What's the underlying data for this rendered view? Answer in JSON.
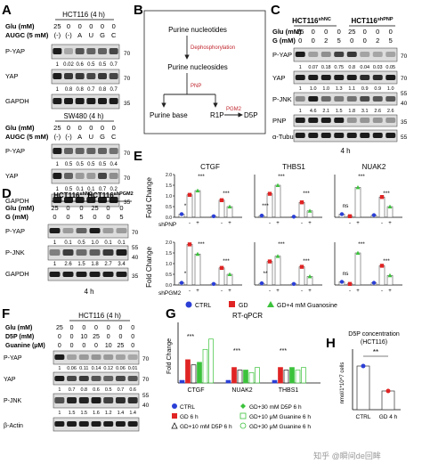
{
  "panels": {
    "A": "A",
    "B": "B",
    "C": "C",
    "D": "D",
    "E": "E",
    "F": "F",
    "G": "G",
    "H": "H"
  },
  "panel_A": {
    "top": {
      "title": "HCT116 (4 h)",
      "row1_label": "Glu (mM)",
      "row1_values": [
        "25",
        "0",
        "0",
        "0",
        "0",
        "0"
      ],
      "row2_label": "AUGC (5 mM)",
      "row2_values": [
        "(-)",
        "(-)",
        "A",
        "U",
        "G",
        "C"
      ],
      "blot1": "P-YAP",
      "quant1": [
        "1",
        "0.02",
        "0.6",
        "0.5",
        "0.5",
        "0.7"
      ],
      "blot2": "YAP",
      "quant2": [
        "1",
        "0.8",
        "0.8",
        "0.7",
        "0.8",
        "0.7"
      ],
      "blot3": "GAPDH",
      "mw": [
        "70",
        "70",
        "35"
      ]
    },
    "bottom": {
      "title": "SW480 (4 h)",
      "row1_label": "Glu (mM)",
      "row1_values": [
        "25",
        "0",
        "0",
        "0",
        "0",
        "0"
      ],
      "row2_label": "AUGC (5 mM)",
      "row2_values": [
        "(-)",
        "(-)",
        "A",
        "U",
        "G",
        "C"
      ],
      "blot1": "P-YAP",
      "quant1": [
        "1",
        "0.5",
        "0.5",
        "0.5",
        "0.5",
        "0.4"
      ],
      "blot2": "YAP",
      "quant2": [
        "1",
        "0.5",
        "0.1",
        "0.1",
        "0.7",
        "0.2"
      ],
      "blot3": "GAPDH",
      "mw": [
        "70",
        "70",
        "35"
      ]
    }
  },
  "panel_B": {
    "n1": "Purine nucleotides",
    "n2": "Purine nucleosides",
    "n3": "Purine base",
    "n4": "R1P",
    "n5": "D5P",
    "e1": "Dephosphorylation",
    "e2": "PNP",
    "e3": "PGM2"
  },
  "panel_C": {
    "group1": "HCT116",
    "group1_sup": "shNC",
    "group2": "HCT116",
    "group2_sup": "shPNP",
    "row1_label": "Glu (mM)",
    "row1_values": [
      "25",
      "0",
      "0",
      "0",
      "25",
      "0",
      "0",
      "0"
    ],
    "row2_label": "G (mM)",
    "row2_values": [
      "0",
      "0",
      "2",
      "5",
      "0",
      "0",
      "2",
      "5"
    ],
    "blot1": "P-YAP",
    "quant1": [
      "1",
      "0.07",
      "0.18",
      "0.75",
      "0.8",
      "0.04",
      "0.03",
      "0.05"
    ],
    "blot2": "YAP",
    "quant2": [
      "1",
      "1.0",
      "1.0",
      "1.3",
      "1.1",
      "0.9",
      "0.9",
      "1.0"
    ],
    "blot3": "P-JNK",
    "quant3": [
      "1",
      "4.6",
      "2.1",
      "1.5",
      "1.8",
      "3.1",
      "2.6",
      "2.6"
    ],
    "blot4": "PNP",
    "blot5": "α-Tubulin",
    "mw": [
      "70",
      "70",
      "55",
      "40",
      "35",
      "55"
    ],
    "time": "4 h"
  },
  "panel_D": {
    "group1": "HCT116",
    "group1_sup": "shNC",
    "group2": "HCT116",
    "group2_sup": "shPGM2",
    "row1_label": "Glu (mM)",
    "row1_values": [
      "25",
      "0",
      "0",
      "25",
      "0",
      "0"
    ],
    "row2_label": "G (mM)",
    "row2_values": [
      "0",
      "0",
      "5",
      "0",
      "0",
      "5"
    ],
    "blot1": "P-YAP",
    "quant1": [
      "1",
      "0.1",
      "0.5",
      "1.0",
      "0.1",
      "0.1"
    ],
    "blot2": "P-JNK",
    "quant2": [
      "1",
      "2.6",
      "1.5",
      "1.8",
      "2.7",
      "3.4"
    ],
    "blot3": "GAPDH",
    "mw": [
      "70",
      "55",
      "40",
      "35"
    ],
    "time": "4 h"
  },
  "panel_E": {
    "ylabel": "Fold Change",
    "gene1": "CTGF",
    "gene2": "THBS1",
    "gene3": "NUAK2",
    "row1_factor": "shPNP",
    "row2_factor": "shPGM2",
    "signs": [
      "-",
      "+",
      "-",
      "+"
    ],
    "yticks": [
      "0.0",
      "0.5",
      "1.0",
      "1.5",
      "2.0"
    ],
    "legend": [
      "CTRL",
      "GD",
      "GD+4 mM Guanosine"
    ],
    "sig": {
      "r1": [
        [
          "*",
          "***",
          "***"
        ],
        [
          "***",
          "***",
          "***"
        ],
        [
          "ns",
          "***",
          "***"
        ]
      ],
      "r2": [
        [
          "*",
          "***",
          "***"
        ],
        [
          "**",
          "***",
          "***"
        ],
        [
          "ns",
          "***",
          "***"
        ]
      ]
    }
  },
  "panel_F": {
    "title": "HCT116 (4 h)",
    "row1_label": "Glu (mM)",
    "row1_values": [
      "25",
      "0",
      "0",
      "0",
      "0",
      "0",
      "0"
    ],
    "row2_label": "D5P (mM)",
    "row2_values": [
      "0",
      "0",
      "10",
      "25",
      "0",
      "0",
      "0"
    ],
    "row3_label": "Guanine (μM)",
    "row3_values": [
      "0",
      "0",
      "0",
      "0",
      "10",
      "25",
      "0"
    ],
    "blot1": "P-YAP",
    "quant1": [
      "1",
      "0.06",
      "0.11",
      "0.14",
      "0.12",
      "0.06",
      "0.01"
    ],
    "blot2": "YAP",
    "quant2": [
      "1",
      "0.7",
      "0.8",
      "0.6",
      "0.5",
      "0.7",
      "0.6"
    ],
    "blot3": "P-JNK",
    "quant3": [
      "1",
      "1.5",
      "1.5",
      "1.6",
      "1.2",
      "1.4",
      "1.4"
    ],
    "blot4": "β-Actin",
    "mw": [
      "70",
      "70",
      "55",
      "40"
    ]
  },
  "panel_G": {
    "title": "RT-qPCR",
    "ylabel": "Fold Change",
    "genes": [
      "CTGF",
      "NUAK2",
      "THBS1"
    ],
    "legend": [
      "CTRL",
      "GD 6 h",
      "GD+10 mM D5P 6 h",
      "GD+30 mM D5P 6 h",
      "GD+10 μM Guanine 6 h",
      "GD+30 μM Guanine 6 h"
    ],
    "sig": [
      "***",
      "***",
      "***"
    ]
  },
  "panel_H": {
    "title1": "D5P concentration",
    "title2": "(HCT116)",
    "ylabel": "nmol/1*10^7 cells",
    "xlabels": [
      "CTRL",
      "GD 4 h"
    ],
    "sig": "**"
  },
  "watermark": "知乎 @瞬间de回眸",
  "chart_data": [
    {
      "type": "scatter",
      "panel": "E-shPNP-CTGF",
      "categories": [
        "CTRL",
        "GD",
        "GD+G",
        "CTRL",
        "GD",
        "GD+G"
      ],
      "values": [
        0.15,
        1.05,
        1.25,
        0.05,
        0.8,
        0.5
      ]
    },
    {
      "type": "scatter",
      "panel": "E-shPNP-THBS1",
      "categories": [
        "CTRL",
        "GD",
        "GD+G",
        "CTRL",
        "GD",
        "GD+G"
      ],
      "values": [
        0.08,
        1.1,
        1.5,
        0.03,
        0.7,
        0.3
      ]
    },
    {
      "type": "scatter",
      "panel": "E-shPNP-NUAK2",
      "categories": [
        "CTRL",
        "GD",
        "GD+G",
        "CTRL",
        "GD",
        "GD+G"
      ],
      "values": [
        0.15,
        0.05,
        1.4,
        0.1,
        0.95,
        0.5
      ]
    },
    {
      "type": "scatter",
      "panel": "E-shPGM2-CTGF",
      "categories": [
        "CTRL",
        "GD",
        "GD+G",
        "CTRL",
        "GD",
        "GD+G"
      ],
      "values": [
        0.1,
        1.9,
        1.45,
        0.05,
        0.8,
        0.5
      ]
    },
    {
      "type": "scatter",
      "panel": "E-shPGM2-THBS1",
      "categories": [
        "CTRL",
        "GD",
        "GD+G",
        "CTRL",
        "GD",
        "GD+G"
      ],
      "values": [
        0.08,
        1.1,
        1.35,
        0.05,
        0.85,
        0.4
      ]
    },
    {
      "type": "scatter",
      "panel": "E-shPGM2-NUAK2",
      "categories": [
        "CTRL",
        "GD",
        "GD+G",
        "CTRL",
        "GD",
        "GD+G"
      ],
      "values": [
        0.15,
        0.05,
        1.5,
        0.1,
        0.9,
        0.45
      ]
    },
    {
      "type": "bar",
      "panel": "G",
      "categories": [
        "CTGF",
        "NUAK2",
        "THBS1"
      ],
      "series": [
        {
          "name": "CTRL",
          "values": [
            0.05,
            0.05,
            0.05
          ]
        },
        {
          "name": "GD 6 h",
          "values": [
            0.45,
            0.3,
            0.3
          ]
        },
        {
          "name": "GD+10 mM D5P 6 h",
          "values": [
            0.35,
            0.25,
            0.25
          ]
        },
        {
          "name": "GD+30 mM D5P 6 h",
          "values": [
            0.4,
            0.25,
            0.3
          ]
        },
        {
          "name": "GD+10 μM Guanine 6 h",
          "values": [
            0.65,
            0.2,
            0.25
          ]
        },
        {
          "name": "GD+30 μM Guanine 6 h",
          "values": [
            0.85,
            0.3,
            0.3
          ]
        }
      ]
    },
    {
      "type": "bar",
      "panel": "H",
      "categories": [
        "CTRL",
        "GD 4 h"
      ],
      "values": [
        3.5,
        1.5
      ],
      "ylabel": "nmol/1*10^7 cells"
    }
  ]
}
